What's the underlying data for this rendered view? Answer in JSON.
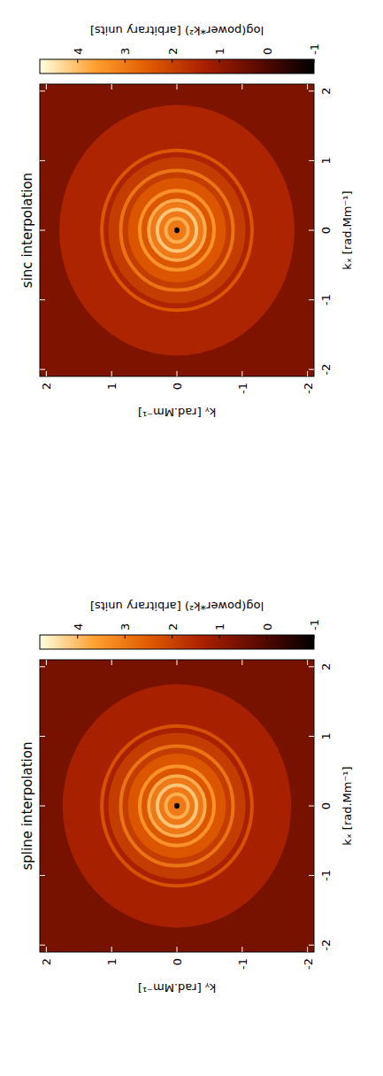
{
  "chart_data": [
    {
      "type": "heatmap",
      "title": "spline interpolation",
      "x_label": "kₓ [rad.Mm⁻¹]",
      "y_label": "kᵧ [rad.Mm⁻¹]",
      "xlim": [
        -2.1,
        2.1
      ],
      "ylim": [
        -2.1,
        2.1
      ],
      "xticks": [
        -2,
        -1,
        0,
        1,
        2
      ],
      "yticks": [
        -2,
        -1,
        0,
        1,
        2
      ],
      "levels": [
        {
          "k": 3.0,
          "value": 0.6
        },
        {
          "k": 1.75,
          "value": 1.3
        },
        {
          "k": 1.05,
          "value": 1.9
        },
        {
          "k": 0.75,
          "value": 2.4
        },
        {
          "k": 0.4,
          "value": 3.0
        },
        {
          "k": 0.04,
          "value": -1
        }
      ],
      "rings": [
        {
          "k": 0.17,
          "value": 3.9
        },
        {
          "k": 0.3,
          "value": 4.2
        },
        {
          "k": 0.43,
          "value": 3.9
        },
        {
          "k": 0.57,
          "value": 3.5
        },
        {
          "k": 0.86,
          "value": 3.0
        },
        {
          "k": 1.15,
          "value": 2.4
        }
      ],
      "colorbar": {
        "label": "log(power*k²) [arbitrary units]",
        "range": [
          -1,
          4.8
        ],
        "ticks": [
          -1,
          0,
          1,
          2,
          3,
          4
        ],
        "colors": [
          "#000000",
          "#5a0a00",
          "#a82000",
          "#e05a00",
          "#ffa030",
          "#ffffe0"
        ]
      }
    },
    {
      "type": "heatmap",
      "title": "sinc interpolation",
      "x_label": "kₓ [rad.Mm⁻¹]",
      "y_label": "kᵧ [rad.Mm⁻¹]",
      "xlim": [
        -2.1,
        2.1
      ],
      "ylim": [
        -2.1,
        2.1
      ],
      "xticks": [
        -2,
        -1,
        0,
        1,
        2
      ],
      "yticks": [
        -2,
        -1,
        0,
        1,
        2
      ],
      "levels": [
        {
          "k": 3.0,
          "value": 0.7
        },
        {
          "k": 1.8,
          "value": 1.4
        },
        {
          "k": 1.05,
          "value": 1.9
        },
        {
          "k": 0.75,
          "value": 2.4
        },
        {
          "k": 0.4,
          "value": 3.0
        },
        {
          "k": 0.04,
          "value": -1
        }
      ],
      "rings": [
        {
          "k": 0.17,
          "value": 3.9
        },
        {
          "k": 0.3,
          "value": 4.2
        },
        {
          "k": 0.43,
          "value": 3.9
        },
        {
          "k": 0.57,
          "value": 3.5
        },
        {
          "k": 0.86,
          "value": 3.0
        },
        {
          "k": 1.15,
          "value": 2.5
        }
      ],
      "colorbar": {
        "label": "log(power*k²) [arbitrary units]",
        "range": [
          -1,
          4.8
        ],
        "ticks": [
          -1,
          0,
          1,
          2,
          3,
          4
        ],
        "colors": [
          "#000000",
          "#5a0a00",
          "#a82000",
          "#e05a00",
          "#ffa030",
          "#ffffe0"
        ]
      }
    }
  ]
}
